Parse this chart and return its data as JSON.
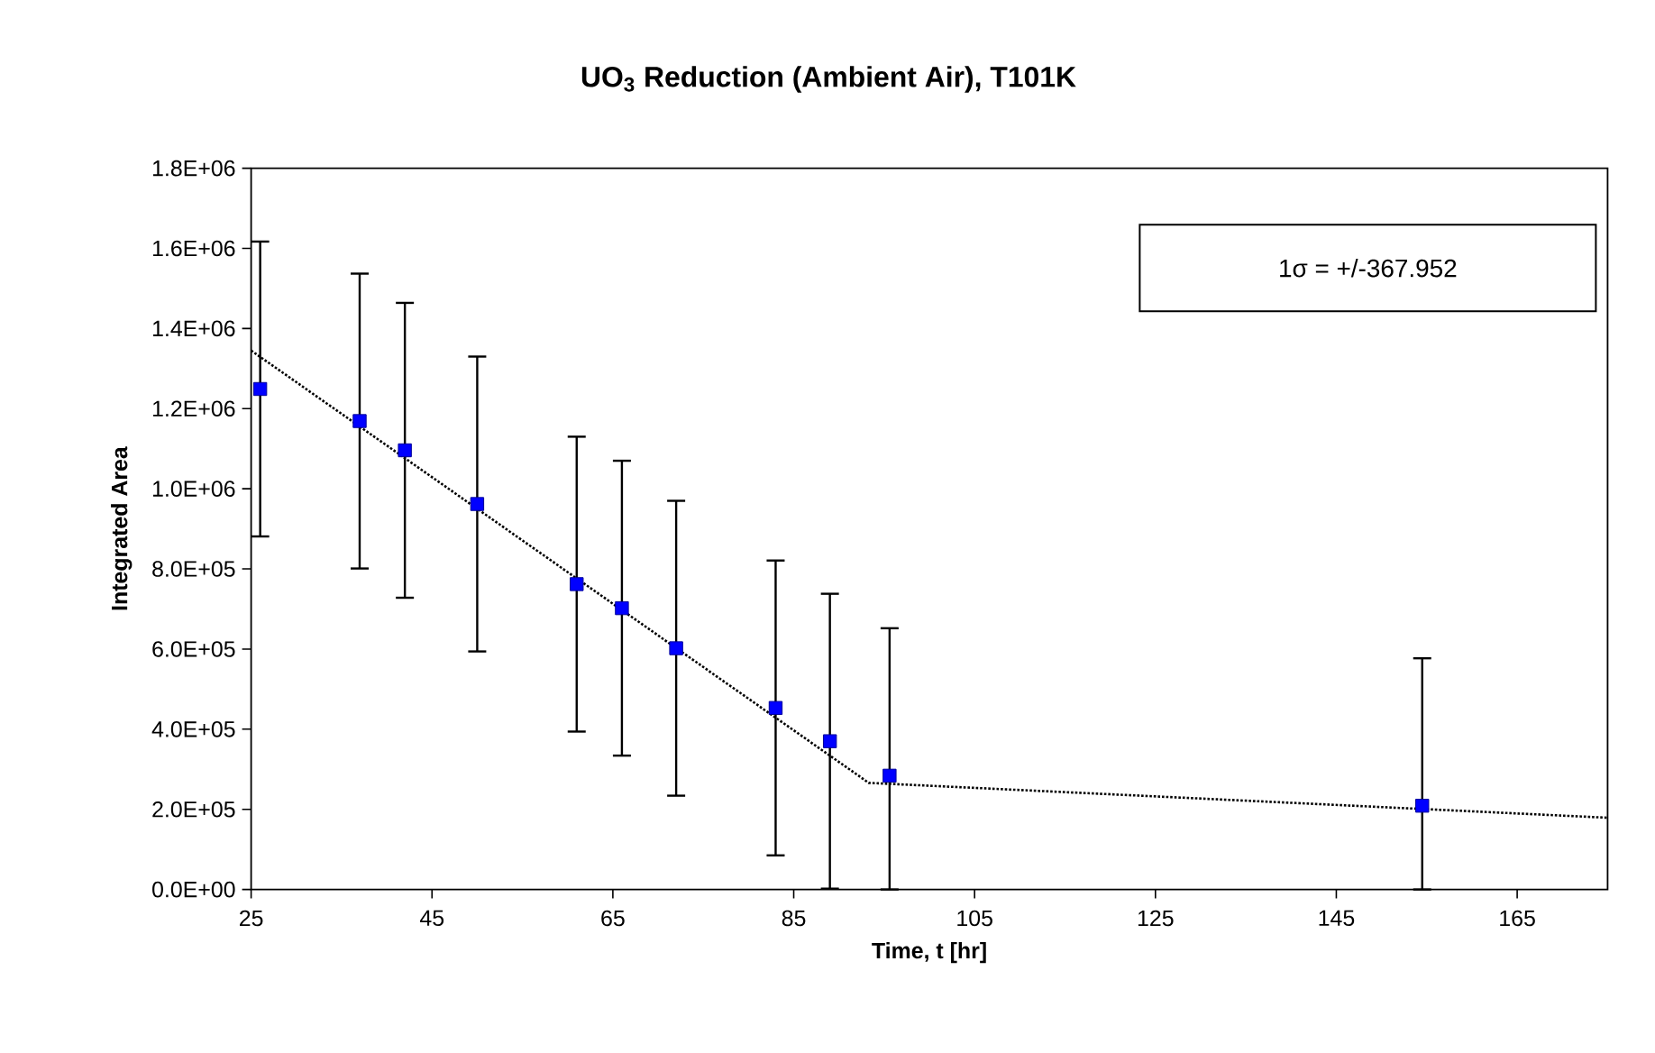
{
  "chart_data": {
    "type": "scatter",
    "title": "UO$_{3}$ Reduction (Ambient Air), T101K",
    "xlabel": "Time, t [hr]",
    "ylabel": "Integrated Area",
    "xlim": [
      25,
      175
    ],
    "xticks": [
      25,
      45,
      65,
      85,
      105,
      125,
      145,
      165
    ],
    "ylim": [
      0,
      1800000
    ],
    "yticks": [
      {
        "value": 0,
        "label": "0.0E+00"
      },
      {
        "value": 200000,
        "label": "2.0E+05"
      },
      {
        "value": 400000,
        "label": "4.0E+05"
      },
      {
        "value": 600000,
        "label": "6.0E+05"
      },
      {
        "value": 800000,
        "label": "8.0E+05"
      },
      {
        "value": 1000000,
        "label": "1.0E+06"
      },
      {
        "value": 1200000,
        "label": "1.2E+06"
      },
      {
        "value": 1400000,
        "label": "1.4E+06"
      },
      {
        "value": 1600000,
        "label": "1.6E+06"
      },
      {
        "value": 1800000,
        "label": "1.8E+06"
      }
    ],
    "annotations": [
      "1σ = +/-367.952"
    ],
    "series": [
      {
        "type": "scatter",
        "color": "#0000ff",
        "marker": "square",
        "x": [
          26,
          37,
          42,
          50,
          61,
          66,
          72,
          83,
          89,
          95.6,
          154.5
        ],
        "values": [
          1249000,
          1169000,
          1096000,
          962000,
          762000,
          702000,
          602000,
          453000,
          370000,
          284000,
          209000
        ],
        "errors": [
          367952,
          367952,
          367952,
          367952,
          367952,
          367952,
          367952,
          367952,
          367952,
          [
            0,
            651952
          ],
          [
            0,
            576952
          ]
        ]
      },
      {
        "type": "line",
        "color": "#000000",
        "marker": "none",
        "line_style": "dotted",
        "x": [
          25,
          93.3,
          175
        ],
        "values": [
          1345000,
          266000,
          179000
        ]
      }
    ]
  }
}
